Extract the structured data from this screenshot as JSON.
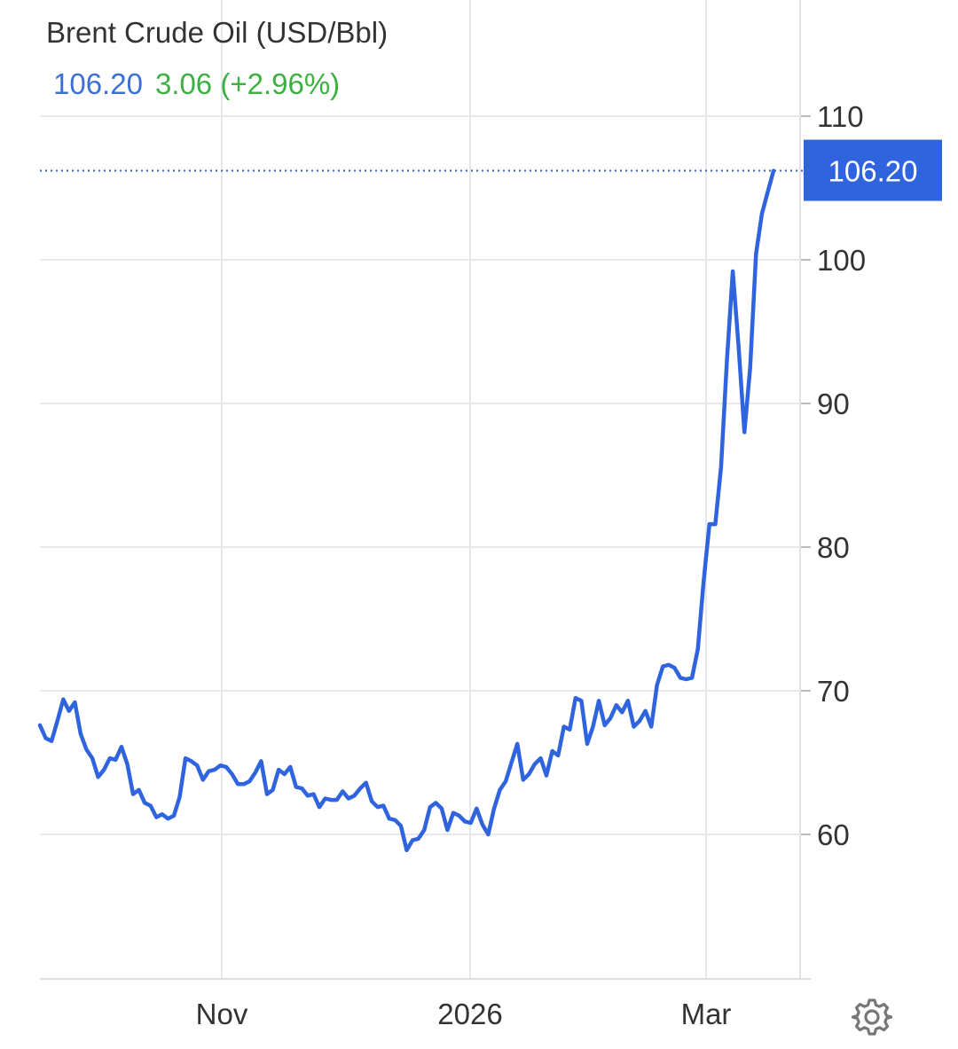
{
  "header": {
    "title": "Brent Crude Oil (USD/Bbl)",
    "price": "106.20",
    "change": "3.06 (+2.96%)"
  },
  "colors": {
    "line": "#2F64DE",
    "price_text": "#3B6FD6",
    "change_text": "#3CB043",
    "grid": "#E6E8EC",
    "last_badge": "#2F64DE"
  },
  "icons": {
    "settings": "gear-icon"
  },
  "chart_data": {
    "type": "line",
    "title": "Brent Crude Oil (USD/Bbl)",
    "x_tick_labels": [
      "Nov",
      "2026",
      "Mar"
    ],
    "y_tick_labels": [
      "110",
      "100",
      "90",
      "80",
      "70",
      "60"
    ],
    "y_ticks": [
      110,
      100,
      90,
      80,
      70,
      60
    ],
    "ylim": [
      50,
      110.8
    ],
    "last_value_label": "106.20",
    "last_value": 106.2,
    "grid": true,
    "series": [
      {
        "values": [
          67.6,
          66.7,
          66.5,
          67.9,
          69.4,
          68.6,
          69.2,
          67.0,
          65.9,
          65.3,
          64.0,
          64.5,
          65.3,
          65.2,
          66.1,
          64.9,
          62.8,
          63.1,
          62.2,
          62.0,
          61.2,
          61.4,
          61.1,
          61.3,
          62.6,
          65.3,
          65.1,
          64.8,
          63.8,
          64.4,
          64.5,
          64.8,
          64.7,
          64.2,
          63.5,
          63.5,
          63.7,
          64.3,
          65.1,
          62.8,
          63.1,
          64.5,
          64.2,
          64.7,
          63.3,
          63.2,
          62.7,
          62.8,
          61.9,
          62.5,
          62.4,
          62.4,
          63.0,
          62.5,
          62.7,
          63.2,
          63.6,
          62.3,
          61.9,
          62.0,
          61.1,
          61.0,
          60.6,
          58.9,
          59.6,
          59.7,
          60.3,
          61.9,
          62.2,
          61.8,
          60.3,
          61.5,
          61.3,
          60.9,
          60.8,
          61.8,
          60.7,
          60.0,
          61.8,
          63.1,
          63.7,
          65.0,
          66.3,
          63.8,
          64.2,
          64.9,
          65.3,
          64.1,
          65.8,
          65.5,
          67.5,
          67.3,
          69.5,
          69.3,
          66.3,
          67.5,
          69.3,
          67.6,
          68.1,
          69.0,
          68.5,
          69.3,
          67.5,
          67.9,
          68.6,
          67.5,
          70.4,
          71.7,
          71.8,
          71.6,
          70.9,
          70.8,
          70.9,
          72.9,
          77.6,
          81.6,
          81.6,
          85.6,
          93.0,
          99.2,
          94.0,
          88.0,
          92.5,
          100.4,
          103.2,
          104.7,
          106.2
        ]
      }
    ]
  }
}
